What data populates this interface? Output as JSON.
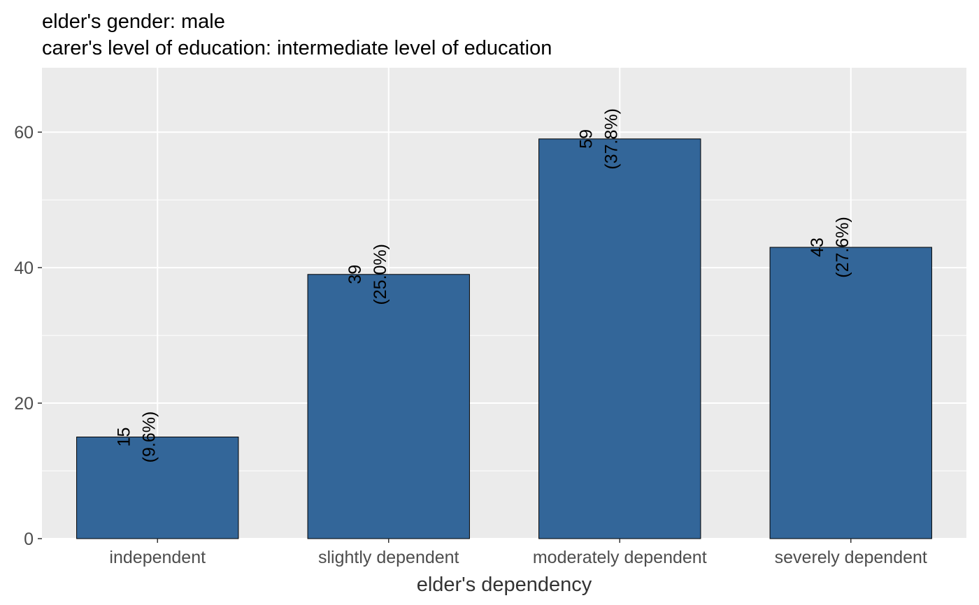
{
  "chart_data": {
    "type": "bar",
    "title": "elder's gender: male",
    "subtitle": "carer's level of education: intermediate level of education",
    "xlabel": "elder's dependency",
    "ylabel": "",
    "categories": [
      "independent",
      "slightly dependent",
      "moderately dependent",
      "severely dependent"
    ],
    "values": [
      15,
      39,
      59,
      43
    ],
    "labels": [
      {
        "count": "15",
        "percent": "(9.6%)"
      },
      {
        "count": "39",
        "percent": "(25.0%)"
      },
      {
        "count": "59",
        "percent": "(37.8%)"
      },
      {
        "count": "43",
        "percent": "(27.6%)"
      }
    ],
    "ylim": [
      0,
      69.5
    ],
    "yticks": [
      0,
      20,
      40,
      60
    ],
    "yticks_labels": [
      "0",
      "20",
      "40",
      "60"
    ],
    "grid": true,
    "legend": "none",
    "colors": {
      "bar": "#336699",
      "bar_outline": "#000000",
      "panel": "#ebebeb",
      "grid": "#ffffff"
    }
  }
}
